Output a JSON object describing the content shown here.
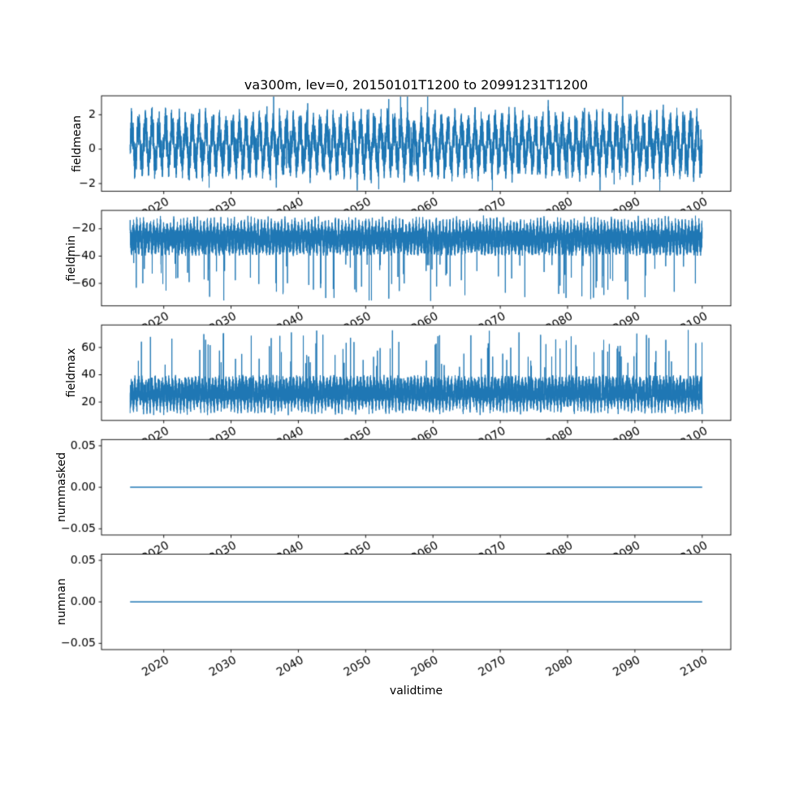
{
  "title": "va300m, lev=0, 20150101T1200 to 20991231T1200",
  "xlabel": "validtime",
  "chart_data": {
    "type": "line",
    "title": "va300m, lev=0, 20150101T1200 to 20991231T1200",
    "xlabel": "validtime",
    "line_color": "#1f77b4",
    "background": "#ffffff",
    "grid": false,
    "legend": "none",
    "x_data_range": [
      2015.0,
      2100.0
    ],
    "xlim": [
      2010.75,
      2104.25
    ],
    "x_ticks": [
      2020,
      2030,
      2040,
      2050,
      2060,
      2070,
      2080,
      2090,
      2100
    ],
    "x_tick_labels": [
      "2020",
      "2030",
      "2040",
      "2050",
      "2060",
      "2070",
      "2080",
      "2090",
      "2100"
    ],
    "x_tick_rotation_deg": 30,
    "subplots": [
      {
        "ylabel": "fieldmean",
        "ylim": [
          -2.45,
          3.1
        ],
        "y_ticks": [
          -2,
          0,
          2
        ],
        "y_tick_labels": [
          "−2",
          "0",
          "2"
        ],
        "series": {
          "name": "fieldmean",
          "shape": "noisy-oscillation",
          "center": 0.25,
          "seasonal_amplitude": 1.05,
          "secondary_amplitude": 0.35,
          "noise_amplitude": 0.85,
          "spike_probability": 0.012,
          "spike_amplitude_range": [
            0.8,
            1.8
          ],
          "approx_min": -2.4,
          "approx_max": 3.05
        }
      },
      {
        "ylabel": "fieldmin",
        "ylim": [
          -76.5,
          -6.5
        ],
        "y_ticks": [
          -20,
          -40,
          -60
        ],
        "y_tick_labels": [
          "−20",
          "−40",
          "−60"
        ],
        "series": {
          "name": "fieldmin",
          "shape": "noisy-band-with-downward-spikes",
          "band_top": -10,
          "band_bottom": -35,
          "spike_probability": 0.01,
          "spike_depth_range": [
            -45,
            -73
          ],
          "approx_min": -73,
          "approx_max": -9
        }
      },
      {
        "ylabel": "fieldmax",
        "ylim": [
          6.5,
          76.5
        ],
        "y_ticks": [
          20,
          40,
          60
        ],
        "y_tick_labels": [
          "20",
          "40",
          "60"
        ],
        "series": {
          "name": "fieldmax",
          "shape": "noisy-band-with-upward-spikes",
          "band_bottom": 10,
          "band_top": 35,
          "spike_probability": 0.012,
          "spike_height_range": [
            45,
            73
          ],
          "approx_min": 9,
          "approx_max": 73
        }
      },
      {
        "ylabel": "nummasked",
        "ylim": [
          -0.0575,
          0.0575
        ],
        "y_ticks": [
          -0.05,
          0,
          0.05
        ],
        "y_tick_labels": [
          "−0.05",
          "0.00",
          "0.05"
        ],
        "series": {
          "name": "nummasked",
          "shape": "constant",
          "value": 0.0
        }
      },
      {
        "ylabel": "numnan",
        "ylim": [
          -0.0575,
          0.0575
        ],
        "y_ticks": [
          -0.05,
          0,
          0.05
        ],
        "y_tick_labels": [
          "−0.05",
          "0.00",
          "0.05"
        ],
        "series": {
          "name": "numnan",
          "shape": "constant",
          "value": 0.0
        }
      }
    ]
  }
}
